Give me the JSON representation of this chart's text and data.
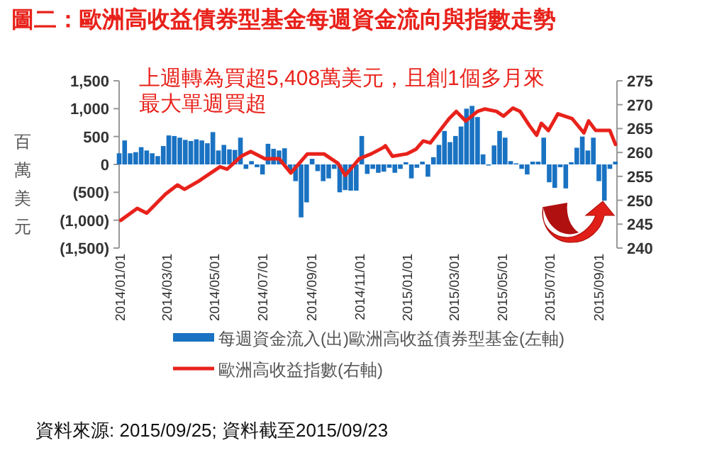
{
  "chart_data": {
    "type": "bar",
    "title": "圖二：歐洲高收益債券型基金每週資金流向與指數走勢",
    "ylabel": "百萬美元",
    "legend": "bottom",
    "annotations": [
      "上週轉為買超5,408萬美元，且創1個多月來",
      "最大單週買超",
      "資料來源: 2015/09/25; 資料截至2015/09/23"
    ],
    "xlim": [
      "2014-01-01",
      "2015-09-25"
    ],
    "xticks": [
      {
        "value": "2014-01-01",
        "label": "2014/01/01"
      },
      {
        "value": "2014-03-01",
        "label": "2014/03/01"
      },
      {
        "value": "2014-05-01",
        "label": "2014/05/01"
      },
      {
        "value": "2014-07-01",
        "label": "2014/07/01"
      },
      {
        "value": "2014-09-01",
        "label": "2014/09/01"
      },
      {
        "value": "2014-11-01",
        "label": "2014/11/01"
      },
      {
        "value": "2015-01-01",
        "label": "2015/01/01"
      },
      {
        "value": "2015-03-01",
        "label": "2015/03/01"
      },
      {
        "value": "2015-05-01",
        "label": "2015/05/01"
      },
      {
        "value": "2015-07-01",
        "label": "2015/07/01"
      },
      {
        "value": "2015-09-01",
        "label": "2015/09/01"
      }
    ],
    "ylim": [
      -1500,
      1500
    ],
    "yticks": [
      {
        "value": 1500,
        "label": "1,500"
      },
      {
        "value": 1000,
        "label": "1,000"
      },
      500,
      0,
      {
        "value": -500,
        "label": "(500)"
      },
      {
        "value": -1000,
        "label": "(1,000)"
      },
      {
        "value": -1500,
        "label": "(1,500)"
      }
    ],
    "y2lim": [
      240,
      275
    ],
    "y2ticks": [
      275,
      270,
      265,
      260,
      255,
      250,
      245,
      240
    ],
    "series": [
      {
        "name": "每週資金流入(出)歐洲高收益債券型基金(左軸)",
        "color": "#1a72c2",
        "x": [
          "2014-01-01",
          "2014-01-08",
          "2014-01-15",
          "2014-01-22",
          "2014-01-29",
          "2014-02-05",
          "2014-02-12",
          "2014-02-19",
          "2014-02-26",
          "2014-03-05",
          "2014-03-12",
          "2014-03-19",
          "2014-03-26",
          "2014-04-02",
          "2014-04-09",
          "2014-04-16",
          "2014-04-23",
          "2014-04-30",
          "2014-05-07",
          "2014-05-14",
          "2014-05-21",
          "2014-05-28",
          "2014-06-04",
          "2014-06-11",
          "2014-06-18",
          "2014-06-25",
          "2014-07-02",
          "2014-07-09",
          "2014-07-16",
          "2014-07-23",
          "2014-07-30",
          "2014-08-06",
          "2014-08-13",
          "2014-08-20",
          "2014-08-27",
          "2014-09-03",
          "2014-09-10",
          "2014-09-17",
          "2014-09-24",
          "2014-10-01",
          "2014-10-08",
          "2014-10-15",
          "2014-10-22",
          "2014-10-29",
          "2014-11-05",
          "2014-11-12",
          "2014-11-19",
          "2014-11-26",
          "2014-12-03",
          "2014-12-10",
          "2014-12-17",
          "2014-12-24",
          "2014-12-31",
          "2015-01-07",
          "2015-01-14",
          "2015-01-21",
          "2015-01-28",
          "2015-02-04",
          "2015-02-11",
          "2015-02-18",
          "2015-02-25",
          "2015-03-04",
          "2015-03-11",
          "2015-03-18",
          "2015-03-25",
          "2015-04-01",
          "2015-04-08",
          "2015-04-15",
          "2015-04-22",
          "2015-04-29",
          "2015-05-06",
          "2015-05-13",
          "2015-05-20",
          "2015-05-27",
          "2015-06-03",
          "2015-06-10",
          "2015-06-17",
          "2015-06-24",
          "2015-07-01",
          "2015-07-08",
          "2015-07-15",
          "2015-07-22",
          "2015-07-29",
          "2015-08-05",
          "2015-08-12",
          "2015-08-19",
          "2015-08-26",
          "2015-09-02",
          "2015-09-09",
          "2015-09-16",
          "2015-09-23"
        ],
        "values": [
          200,
          430,
          200,
          220,
          310,
          250,
          200,
          150,
          330,
          520,
          510,
          480,
          440,
          420,
          450,
          430,
          380,
          580,
          250,
          350,
          270,
          260,
          480,
          -80,
          60,
          -50,
          -180,
          370,
          280,
          250,
          290,
          -120,
          -300,
          -950,
          -680,
          100,
          -120,
          -300,
          -250,
          -80,
          -500,
          -460,
          -470,
          -470,
          510,
          -170,
          -80,
          -150,
          -130,
          -60,
          -150,
          -80,
          40,
          -250,
          -60,
          50,
          -220,
          130,
          350,
          600,
          400,
          510,
          680,
          1000,
          1050,
          850,
          180,
          -20,
          340,
          600,
          480,
          60,
          20,
          -80,
          -180,
          50,
          50,
          480,
          -320,
          -420,
          -50,
          -430,
          40,
          300,
          500,
          250,
          480,
          -300,
          -650,
          -80,
          50
        ]
      },
      {
        "name": "歐洲高收益指數(右軸)",
        "type": "line",
        "axis": "y2",
        "color": "#e8221b",
        "x": [
          "2014-01-03",
          "2014-01-24",
          "2014-02-05",
          "2014-03-01",
          "2014-03-16",
          "2014-03-25",
          "2014-04-12",
          "2014-05-09",
          "2014-05-18",
          "2014-06-05",
          "2014-06-17",
          "2014-07-05",
          "2014-07-23",
          "2014-08-07",
          "2014-08-28",
          "2014-09-18",
          "2014-10-06",
          "2014-10-15",
          "2014-11-02",
          "2014-11-17",
          "2014-12-02",
          "2014-12-05",
          "2014-12-14",
          "2015-01-01",
          "2015-01-13",
          "2015-01-22",
          "2015-01-31",
          "2015-02-24",
          "2015-03-05",
          "2015-03-17",
          "2015-04-01",
          "2015-04-10",
          "2015-04-25",
          "2015-05-04",
          "2015-05-16",
          "2015-05-25",
          "2015-06-06",
          "2015-06-15",
          "2015-06-21",
          "2015-06-30",
          "2015-07-12",
          "2015-07-30",
          "2015-08-14",
          "2015-08-20",
          "2015-08-29",
          "2015-09-16",
          "2015-09-23"
        ],
        "values": [
          245.8,
          248.3,
          247.3,
          251.3,
          253.2,
          252.3,
          254.0,
          257.0,
          256.5,
          259.2,
          260.2,
          258.7,
          258.7,
          255.7,
          259.7,
          259.7,
          257.7,
          255.2,
          258.7,
          259.7,
          261.0,
          261.4,
          259.2,
          259.7,
          260.7,
          262.4,
          262.0,
          267.1,
          268.6,
          266.6,
          268.6,
          269.1,
          268.6,
          267.6,
          269.3,
          268.6,
          265.6,
          263.6,
          266.1,
          264.6,
          268.1,
          267.1,
          264.1,
          266.6,
          264.6,
          264.6,
          261.7
        ]
      }
    ]
  }
}
